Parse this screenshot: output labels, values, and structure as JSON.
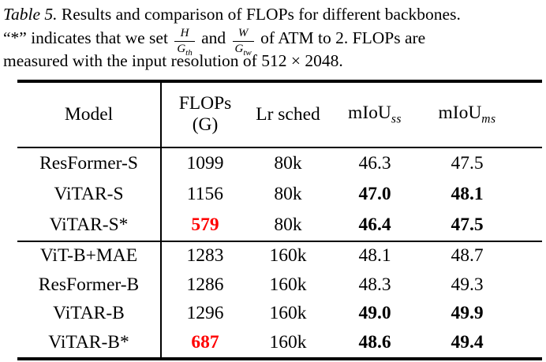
{
  "caption": {
    "label": "Table 5.",
    "line1_rest": "Results and comparison of FLOPs for different backbones.",
    "line2_prefix": "“*” indicates that we set",
    "frac1_num": "H",
    "frac1_den_base": "G",
    "frac1_den_sub": "th",
    "line2_mid": "and",
    "frac2_num": "W",
    "frac2_den_base": "G",
    "frac2_den_sub": "tw",
    "line2_suffix": "of ATM to 2. FLOPs are",
    "line3": "measured with the input resolution of 512 × 2048."
  },
  "table": {
    "header": {
      "model": "Model",
      "flops_line1": "FLOPs",
      "flops_line2": "(G)",
      "lr_sched": "Lr sched",
      "miou_ss_base": "mIoU",
      "miou_ss_sub": "ss",
      "miou_ms_base": "mIoU",
      "miou_ms_sub": "ms"
    },
    "group1": {
      "rows": [
        {
          "model": "ResFormer-S",
          "flops": "1099",
          "lr": "80k",
          "miou_ss": "46.3",
          "miou_ms": "47.5"
        },
        {
          "model": "ViTAR-S",
          "flops": "1156",
          "lr": "80k",
          "miou_ss": "47.0",
          "miou_ms": "48.1"
        },
        {
          "model": "ViTAR-S*",
          "flops": "579",
          "lr": "80k",
          "miou_ss": "46.4",
          "miou_ms": "47.5"
        }
      ]
    },
    "group2": {
      "rows": [
        {
          "model": "ViT-B+MAE",
          "flops": "1283",
          "lr": "160k",
          "miou_ss": "48.1",
          "miou_ms": "48.7"
        },
        {
          "model": "ResFormer-B",
          "flops": "1286",
          "lr": "160k",
          "miou_ss": "48.3",
          "miou_ms": "49.3"
        },
        {
          "model": "ViTAR-B",
          "flops": "1296",
          "lr": "160k",
          "miou_ss": "49.0",
          "miou_ms": "49.9"
        },
        {
          "model": "ViTAR-B*",
          "flops": "687",
          "lr": "160k",
          "miou_ss": "48.6",
          "miou_ms": "49.4"
        }
      ]
    }
  },
  "colors": {
    "highlight_red": "#ff0000",
    "text": "#000000",
    "background": "#ffffff"
  }
}
